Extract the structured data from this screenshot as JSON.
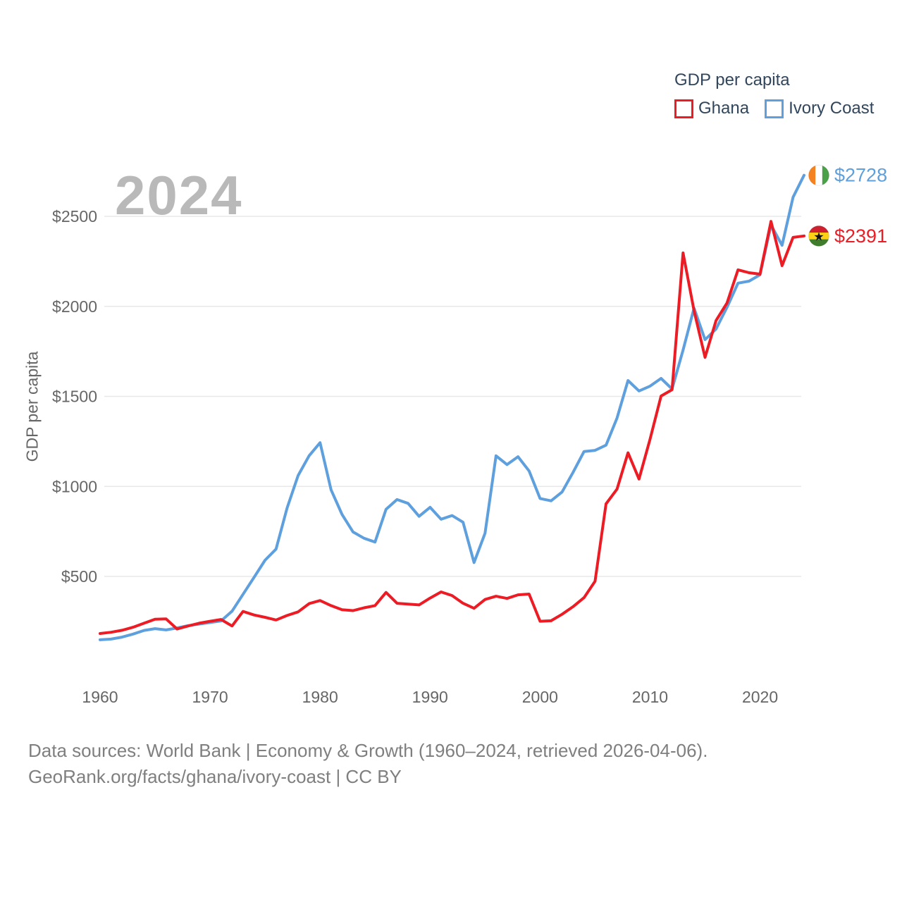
{
  "legend": {
    "title": "GDP per capita",
    "items": [
      {
        "label": "Ghana",
        "color": "#ed1c24"
      },
      {
        "label": "Ivory Coast",
        "color": "#5e9fdd"
      }
    ]
  },
  "watermark": "2024",
  "footer": {
    "line1": "Data sources: World Bank | Economy & Growth (1960–2024, retrieved 2026-04-06).",
    "line2": "GeoRank.org/facts/ghana/ivory-coast | CC BY"
  },
  "flags": {
    "ghana": {
      "stripes": [
        "#cf2030",
        "#fcd116",
        "#3f7d2c"
      ],
      "star_color": "#111111"
    },
    "ivory_coast": {
      "stripes": [
        "#f58220",
        "#ffffff",
        "#4aa147"
      ]
    }
  },
  "chart_data": {
    "type": "line",
    "title": "GDP per capita",
    "xlabel": "",
    "ylabel": "GDP per capita",
    "x_range": [
      1960,
      2024
    ],
    "ylim": [
      100,
      2850
    ],
    "grid": "horizontal-only",
    "legend_position": "top-right",
    "y_ticks": [
      {
        "value": 500,
        "label": "$500"
      },
      {
        "value": 1000,
        "label": "$1000"
      },
      {
        "value": 1500,
        "label": "$1500"
      },
      {
        "value": 2000,
        "label": "$2000"
      },
      {
        "value": 2500,
        "label": "$2500"
      }
    ],
    "x_ticks": [
      {
        "value": 1960,
        "label": "1960"
      },
      {
        "value": 1970,
        "label": "1970"
      },
      {
        "value": 1980,
        "label": "1980"
      },
      {
        "value": 1990,
        "label": "1990"
      },
      {
        "value": 2000,
        "label": "2000"
      },
      {
        "value": 2010,
        "label": "2010"
      },
      {
        "value": 2020,
        "label": "2020"
      }
    ],
    "years": [
      1960,
      1961,
      1962,
      1963,
      1964,
      1965,
      1966,
      1967,
      1968,
      1969,
      1970,
      1971,
      1972,
      1973,
      1974,
      1975,
      1976,
      1977,
      1978,
      1979,
      1980,
      1981,
      1982,
      1983,
      1984,
      1985,
      1986,
      1987,
      1988,
      1989,
      1990,
      1991,
      1992,
      1993,
      1994,
      1995,
      1996,
      1997,
      1998,
      1999,
      2000,
      2001,
      2002,
      2003,
      2004,
      2005,
      2006,
      2007,
      2008,
      2009,
      2010,
      2011,
      2012,
      2013,
      2014,
      2015,
      2016,
      2017,
      2018,
      2019,
      2020,
      2021,
      2022,
      2023,
      2024
    ],
    "series": [
      {
        "name": "Ivory Coast",
        "color": "#5e9fdd",
        "flag": "ivory_coast",
        "end_label": "$2728",
        "final_value": 2728,
        "values": [
          148,
          152,
          163,
          180,
          200,
          210,
          203,
          214,
          227,
          235,
          244,
          253,
          307,
          401,
          495,
          590,
          652,
          880,
          1060,
          1170,
          1243,
          981,
          844,
          747,
          712,
          691,
          873,
          927,
          906,
          834,
          884,
          818,
          838,
          801,
          577,
          740,
          1170,
          1121,
          1165,
          1086,
          933,
          920,
          969,
          1078,
          1194,
          1200,
          1229,
          1380,
          1588,
          1530,
          1557,
          1600,
          1541,
          1757,
          1990,
          1815,
          1874,
          1995,
          2129,
          2140,
          2175,
          2452,
          2339,
          2606,
          2728
        ]
      },
      {
        "name": "Ghana",
        "color": "#ed1c24",
        "flag": "ghana",
        "end_label": "$2391",
        "final_value": 2391,
        "values": [
          183,
          190,
          201,
          218,
          240,
          262,
          264,
          208,
          225,
          240,
          251,
          261,
          225,
          306,
          286,
          273,
          258,
          283,
          303,
          349,
          366,
          338,
          315,
          310,
          326,
          338,
          411,
          351,
          346,
          342,
          380,
          414,
          394,
          351,
          323,
          372,
          390,
          378,
          398,
          402,
          251,
          254,
          290,
          332,
          382,
          473,
          903,
          985,
          1187,
          1041,
          1263,
          1502,
          1537,
          2297,
          1976,
          1717,
          1921,
          2019,
          2203,
          2187,
          2179,
          2472,
          2226,
          2383,
          2391
        ]
      }
    ]
  }
}
